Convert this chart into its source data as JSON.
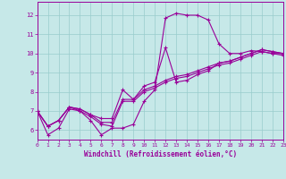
{
  "xlabel": "Windchill (Refroidissement éolien,°C)",
  "bg_color": "#c6e8e8",
  "line_color": "#990099",
  "grid_color": "#99cccc",
  "xlim": [
    0,
    23
  ],
  "ylim": [
    5.5,
    12.7
  ],
  "xticks": [
    0,
    1,
    2,
    3,
    4,
    5,
    6,
    7,
    8,
    9,
    10,
    11,
    12,
    13,
    14,
    15,
    16,
    17,
    18,
    19,
    20,
    21,
    22,
    23
  ],
  "yticks": [
    6,
    7,
    8,
    9,
    10,
    11,
    12
  ],
  "series": [
    [
      7.0,
      5.75,
      6.1,
      7.1,
      7.0,
      6.5,
      5.75,
      6.1,
      6.1,
      6.3,
      7.5,
      8.1,
      11.85,
      12.1,
      12.0,
      12.0,
      11.75,
      10.5,
      10.0,
      10.0,
      10.15,
      10.1,
      10.0,
      10.0
    ],
    [
      7.0,
      6.2,
      6.5,
      7.2,
      7.1,
      6.8,
      6.6,
      6.6,
      8.1,
      7.6,
      8.3,
      8.5,
      10.3,
      8.5,
      8.6,
      8.9,
      9.1,
      9.5,
      9.6,
      9.8,
      10.0,
      10.2,
      10.1,
      10.0
    ],
    [
      7.0,
      6.2,
      6.5,
      7.2,
      7.1,
      6.8,
      6.4,
      6.4,
      7.6,
      7.6,
      8.1,
      8.3,
      8.6,
      8.8,
      8.9,
      9.1,
      9.3,
      9.5,
      9.6,
      9.8,
      10.0,
      10.2,
      10.1,
      10.0
    ],
    [
      7.0,
      6.2,
      6.5,
      7.2,
      7.0,
      6.7,
      6.3,
      6.2,
      7.5,
      7.5,
      8.0,
      8.2,
      8.5,
      8.7,
      8.8,
      9.0,
      9.2,
      9.4,
      9.5,
      9.7,
      9.9,
      10.1,
      10.0,
      9.9
    ]
  ]
}
